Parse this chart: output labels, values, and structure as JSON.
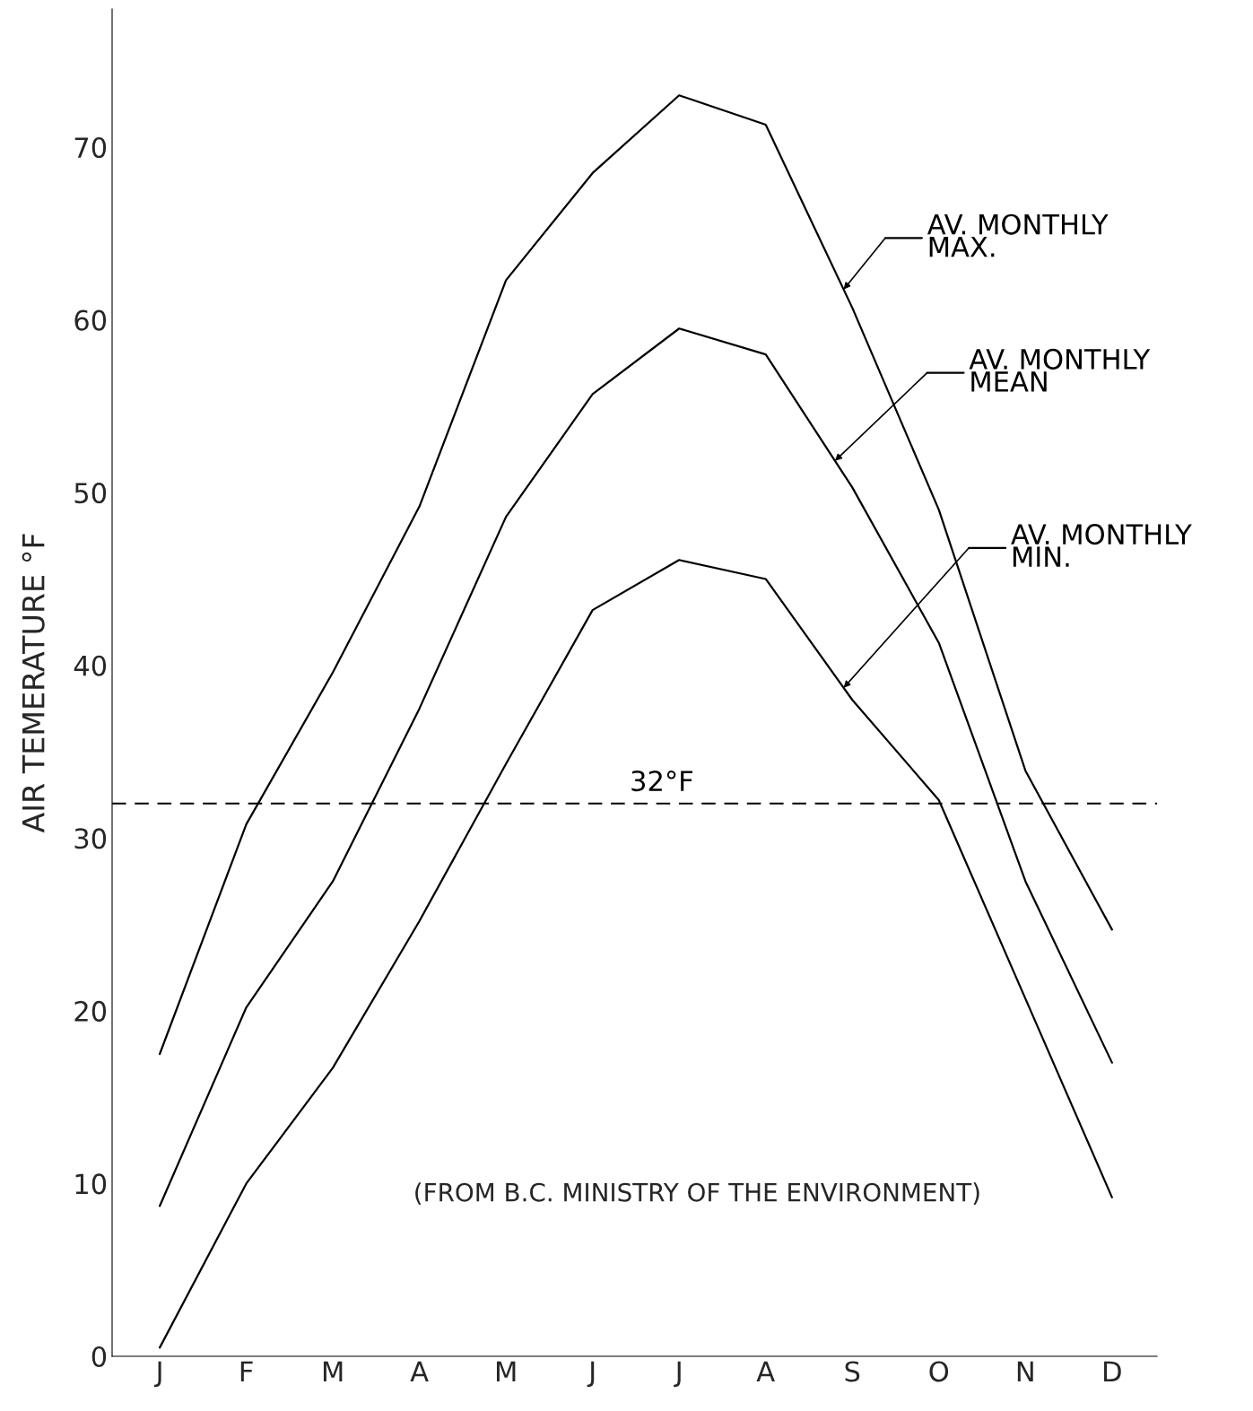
{
  "chart_data": {
    "type": "line",
    "ylabel": "AIR TEMERATURE °F",
    "categories": [
      "J",
      "F",
      "M",
      "A",
      "M",
      "J",
      "J",
      "A",
      "S",
      "O",
      "N",
      "D"
    ],
    "series": [
      {
        "name": "AV. MONTHLY\nMAX.",
        "color": "#000000",
        "values": [
          17.5,
          30.8,
          39.6,
          49.2,
          62.3,
          68.5,
          73,
          71.3,
          60.7,
          49,
          33.9,
          24.7
        ]
      },
      {
        "name": "AV. MONTHLY\nMEAN",
        "color": "#000000",
        "values": [
          8.7,
          20.2,
          27.5,
          37.5,
          48.6,
          55.7,
          59.5,
          58,
          50.3,
          41.3,
          27.5,
          17
        ]
      },
      {
        "name": "AV. MONTHLY\nMIN.",
        "color": "#000000",
        "values": [
          0.5,
          10,
          16.7,
          25.2,
          34.3,
          43.2,
          46.1,
          45,
          38,
          32.2,
          20.7,
          9.2
        ]
      }
    ],
    "ylim": [
      0,
      78
    ],
    "yticks": [
      0,
      10,
      20,
      30,
      40,
      50,
      60,
      70
    ],
    "ref_lines": [
      {
        "axis": "y",
        "value": 32,
        "label": "32°F",
        "color": "#000000",
        "line_style": "dashed"
      }
    ],
    "annotations": [
      "(FROM B.C. MINISTRY OF THE ENVIRONMENT)"
    ],
    "grid": false,
    "legend": "right",
    "marker": "none",
    "line_style": "solid"
  }
}
